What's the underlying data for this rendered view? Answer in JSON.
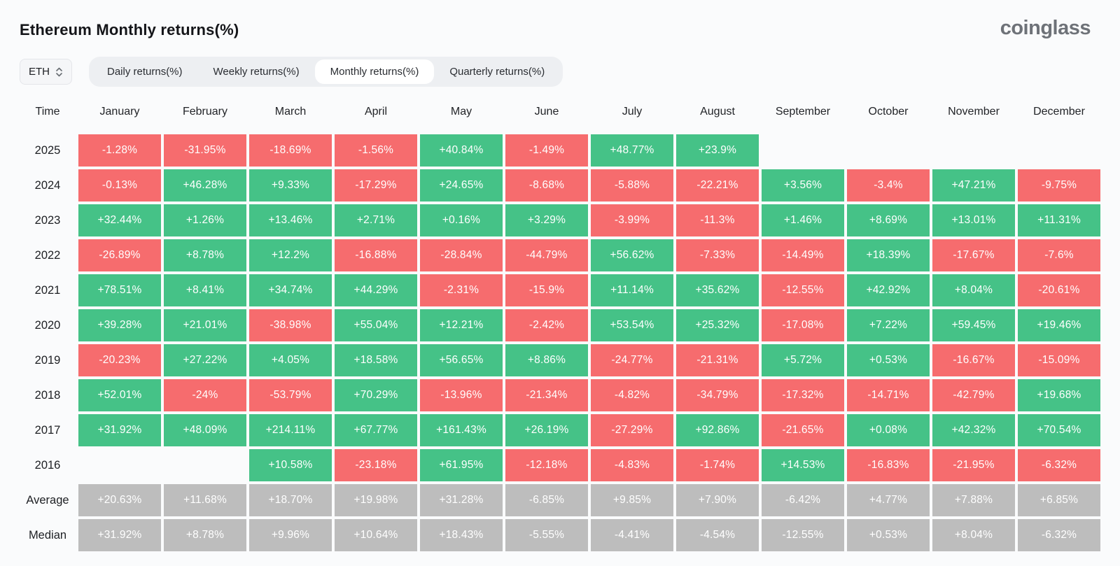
{
  "header": {
    "title": "Ethereum Monthly returns(%)",
    "logo": "coinglass"
  },
  "controls": {
    "symbol_select": {
      "value": "ETH"
    },
    "tabs": [
      {
        "label": "Daily returns(%)",
        "active": false
      },
      {
        "label": "Weekly returns(%)",
        "active": false
      },
      {
        "label": "Monthly returns(%)",
        "active": true
      },
      {
        "label": "Quarterly returns(%)",
        "active": false
      }
    ]
  },
  "colors": {
    "positive": "#45c287",
    "negative": "#f66c6e",
    "summary": "#bdbdbd"
  },
  "table": {
    "corner_label": "Time",
    "months": [
      "January",
      "February",
      "March",
      "April",
      "May",
      "June",
      "July",
      "August",
      "September",
      "October",
      "November",
      "December"
    ],
    "rows": [
      {
        "label": "2025",
        "type": "year",
        "values": [
          "-1.28%",
          "-31.95%",
          "-18.69%",
          "-1.56%",
          "+40.84%",
          "-1.49%",
          "+48.77%",
          "+23.9%",
          "",
          "",
          "",
          ""
        ]
      },
      {
        "label": "2024",
        "type": "year",
        "values": [
          "-0.13%",
          "+46.28%",
          "+9.33%",
          "-17.29%",
          "+24.65%",
          "-8.68%",
          "-5.88%",
          "-22.21%",
          "+3.56%",
          "-3.4%",
          "+47.21%",
          "-9.75%"
        ]
      },
      {
        "label": "2023",
        "type": "year",
        "values": [
          "+32.44%",
          "+1.26%",
          "+13.46%",
          "+2.71%",
          "+0.16%",
          "+3.29%",
          "-3.99%",
          "-11.3%",
          "+1.46%",
          "+8.69%",
          "+13.01%",
          "+11.31%"
        ]
      },
      {
        "label": "2022",
        "type": "year",
        "values": [
          "-26.89%",
          "+8.78%",
          "+12.2%",
          "-16.88%",
          "-28.84%",
          "-44.79%",
          "+56.62%",
          "-7.33%",
          "-14.49%",
          "+18.39%",
          "-17.67%",
          "-7.6%"
        ]
      },
      {
        "label": "2021",
        "type": "year",
        "values": [
          "+78.51%",
          "+8.41%",
          "+34.74%",
          "+44.29%",
          "-2.31%",
          "-15.9%",
          "+11.14%",
          "+35.62%",
          "-12.55%",
          "+42.92%",
          "+8.04%",
          "-20.61%"
        ]
      },
      {
        "label": "2020",
        "type": "year",
        "values": [
          "+39.28%",
          "+21.01%",
          "-38.98%",
          "+55.04%",
          "+12.21%",
          "-2.42%",
          "+53.54%",
          "+25.32%",
          "-17.08%",
          "+7.22%",
          "+59.45%",
          "+19.46%"
        ]
      },
      {
        "label": "2019",
        "type": "year",
        "values": [
          "-20.23%",
          "+27.22%",
          "+4.05%",
          "+18.58%",
          "+56.65%",
          "+8.86%",
          "-24.77%",
          "-21.31%",
          "+5.72%",
          "+0.53%",
          "-16.67%",
          "-15.09%"
        ]
      },
      {
        "label": "2018",
        "type": "year",
        "values": [
          "+52.01%",
          "-24%",
          "-53.79%",
          "+70.29%",
          "-13.96%",
          "-21.34%",
          "-4.82%",
          "-34.79%",
          "-17.32%",
          "-14.71%",
          "-42.79%",
          "+19.68%"
        ]
      },
      {
        "label": "2017",
        "type": "year",
        "values": [
          "+31.92%",
          "+48.09%",
          "+214.11%",
          "+67.77%",
          "+161.43%",
          "+26.19%",
          "-27.29%",
          "+92.86%",
          "-21.65%",
          "+0.08%",
          "+42.32%",
          "+70.54%"
        ]
      },
      {
        "label": "2016",
        "type": "year",
        "values": [
          "",
          "",
          "+10.58%",
          "-23.18%",
          "+61.95%",
          "-12.18%",
          "-4.83%",
          "-1.74%",
          "+14.53%",
          "-16.83%",
          "-21.95%",
          "-6.32%"
        ]
      },
      {
        "label": "Average",
        "type": "summary",
        "values": [
          "+20.63%",
          "+11.68%",
          "+18.70%",
          "+19.98%",
          "+31.28%",
          "-6.85%",
          "+9.85%",
          "+7.90%",
          "-6.42%",
          "+4.77%",
          "+7.88%",
          "+6.85%"
        ]
      },
      {
        "label": "Median",
        "type": "summary",
        "values": [
          "+31.92%",
          "+8.78%",
          "+9.96%",
          "+10.64%",
          "+18.43%",
          "-5.55%",
          "-4.41%",
          "-4.54%",
          "-12.55%",
          "+0.53%",
          "+8.04%",
          "-6.32%"
        ]
      }
    ]
  }
}
